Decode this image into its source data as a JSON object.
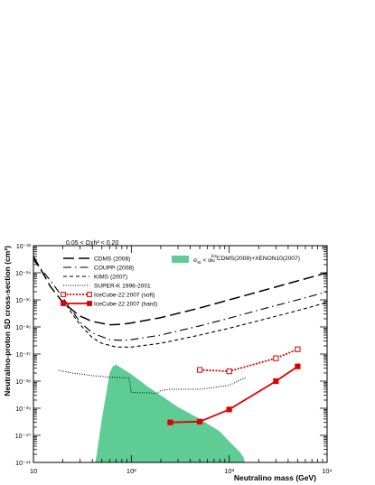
{
  "chart_data": {
    "type": "line",
    "xlabel": "Neutralino mass (GeV)",
    "ylabel": "Neutralino-proton SD cross-section (cm²)",
    "x_scale": "log",
    "y_scale": "log",
    "xlim": [
      10,
      10000
    ],
    "ylim": [
      1e-41,
      1e-33
    ],
    "x_ticks": [
      {
        "value": 10,
        "label": "10"
      },
      {
        "value": 100,
        "label": "10²"
      },
      {
        "value": 1000,
        "label": "10³"
      },
      {
        "value": 10000,
        "label": "10⁴"
      }
    ],
    "y_ticks": [
      {
        "value": 1e-41,
        "label": "10⁻⁴¹"
      },
      {
        "value": 1e-40,
        "label": "10⁻⁴⁰"
      },
      {
        "value": 1e-39,
        "label": "10⁻³⁹"
      },
      {
        "value": 1e-38,
        "label": "10⁻³⁸"
      },
      {
        "value": 1e-37,
        "label": "10⁻³⁷"
      },
      {
        "value": 1e-36,
        "label": "10⁻³⁶"
      },
      {
        "value": 1e-35,
        "label": "10⁻³⁵"
      },
      {
        "value": 1e-34,
        "label": "10⁻³⁴"
      },
      {
        "value": 1e-33,
        "label": "10⁻³³"
      }
    ],
    "annotation": "0.05 < Ωχh² < 0.20",
    "grid": false,
    "legend_position": "top",
    "series": [
      {
        "name": "CDMS (2008)",
        "style": "longdash",
        "color": "#000000",
        "x": [
          10,
          15,
          20,
          30,
          40,
          60,
          80,
          100,
          200,
          500,
          1000,
          2000,
          5000,
          10000
        ],
        "y": [
          4e-34,
          3e-35,
          8e-36,
          2.5e-36,
          1.6e-36,
          1.2e-36,
          1.25e-36,
          1.4e-36,
          2.2e-36,
          5e-36,
          1e-35,
          2e-35,
          5e-35,
          1e-34
        ]
      },
      {
        "name": "COUPP (2008)",
        "style": "dashdot",
        "color": "#000000",
        "x": [
          10,
          15,
          20,
          30,
          40,
          60,
          80,
          100,
          200,
          500,
          1000,
          2000,
          5000,
          10000
        ],
        "y": [
          3e-34,
          5e-35,
          1.2e-35,
          1.5e-36,
          6e-37,
          3.4e-37,
          3.2e-37,
          3.4e-37,
          5e-37,
          1.1e-36,
          2.1e-36,
          4.2e-36,
          1e-35,
          2e-35
        ]
      },
      {
        "name": "KIMS (2007)",
        "style": "dashed",
        "color": "#000000",
        "x": [
          20,
          25,
          30,
          40,
          50,
          70,
          100,
          200,
          500,
          1000,
          2000,
          5000,
          10000
        ],
        "y": [
          1e-35,
          3e-36,
          1.2e-36,
          4e-37,
          2.5e-37,
          1.8e-37,
          1.8e-37,
          2.5e-37,
          5e-37,
          9e-37,
          1.7e-36,
          4e-36,
          8e-36
        ]
      },
      {
        "name": "SUPER-K 1996-2001",
        "style": "dotted",
        "color": "#000000",
        "x": [
          18,
          25,
          40,
          60,
          80,
          95,
          100,
          150,
          180,
          200,
          250,
          300,
          500,
          1000,
          1500
        ],
        "y": [
          2.5e-38,
          2e-38,
          1.6e-38,
          1.4e-38,
          1.35e-38,
          1.3e-38,
          3.8e-39,
          3.7e-39,
          3.5e-39,
          4.5e-39,
          5e-39,
          5e-39,
          5e-39,
          7e-39,
          1.4e-38
        ]
      },
      {
        "name": "IceCube-22 2007 (soft)",
        "style": "dotted-open-squares",
        "color": "#dd0000",
        "x": [
          500,
          1000,
          3000,
          5000
        ],
        "y": [
          2.6e-38,
          2.3e-38,
          7e-38,
          1.5e-37
        ]
      },
      {
        "name": "IceCube-22 2007 (hard)",
        "style": "solid-filled-squares",
        "color": "#dd0000",
        "x": [
          250,
          500,
          1000,
          3000,
          5000
        ],
        "y": [
          3e-40,
          3.2e-40,
          9e-40,
          1e-38,
          3.5e-38
        ]
      }
    ],
    "filled_region": {
      "name": "σSI < σSIlim CDMS(2008)+XENON10(2007)",
      "label_prefix": "σ",
      "label_sub1": "SI",
      "label_mid": " < σ",
      "label_sup": "lim",
      "label_sub2": "SI",
      "label_suffix": " CDMS(2008)+XENON10(2007)",
      "color": "#5fcc96",
      "x": [
        43,
        45,
        50,
        55,
        60,
        65,
        70,
        80,
        100,
        150,
        200,
        300,
        500,
        800,
        1000,
        1300,
        1400,
        1450,
        1450,
        43
      ],
      "y": [
        1e-41,
        3e-41,
        4e-40,
        3e-39,
        2e-38,
        3.6e-38,
        4e-38,
        3e-38,
        1.8e-38,
        6e-39,
        3e-39,
        1.1e-39,
        4e-40,
        1.4e-40,
        6e-41,
        2.3e-41,
        1.5e-41,
        1e-41,
        1e-41,
        1e-41
      ]
    }
  }
}
